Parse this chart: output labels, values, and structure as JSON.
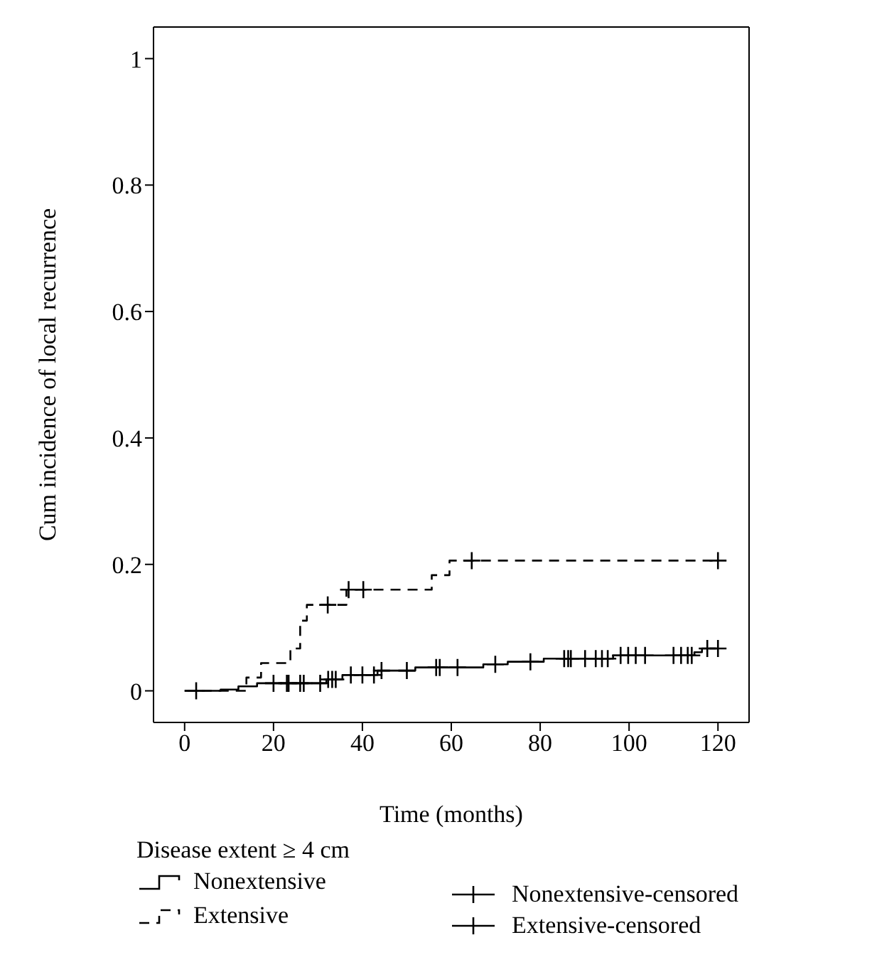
{
  "chart_data": {
    "type": "step",
    "xlabel": "Time (months)",
    "ylabel": "Cum incidence of local recurrence",
    "legend_title": "Disease extent ≥ 4 cm",
    "xlim": [
      -7,
      127
    ],
    "xticks": [
      0,
      20,
      40,
      60,
      80,
      100,
      120
    ],
    "ylim": [
      -0.05,
      1.05
    ],
    "yticks": [
      0,
      0.2,
      0.4,
      0.6,
      0.8,
      1
    ],
    "grid": false,
    "legend": "bottom",
    "series": [
      {
        "name": "Nonextensive",
        "color": "#000000",
        "line_style": "solid",
        "x": [
          0,
          8.1,
          12.1,
          16.3,
          31.9,
          35.5,
          43.4,
          51.9,
          67.2,
          72.7,
          80.8,
          96.4,
          114.7,
          116.4,
          120
        ],
        "values": [
          0,
          0.002,
          0.007,
          0.012,
          0.018,
          0.025,
          0.032,
          0.037,
          0.042,
          0.046,
          0.051,
          0.056,
          0.061,
          0.067,
          0.067
        ]
      },
      {
        "name": "Extensive",
        "color": "#000000",
        "line_style": "dashed",
        "x": [
          0,
          13.9,
          17.2,
          23.8,
          26,
          27.5,
          36.4,
          55.6,
          59.6,
          120
        ],
        "values": [
          0,
          0.021,
          0.044,
          0.067,
          0.111,
          0.136,
          0.16,
          0.183,
          0.206,
          0.206
        ]
      },
      {
        "name": "Nonextensive-censored",
        "type": "scatter",
        "color": "#000000",
        "marker": "cross",
        "x": [
          2.6,
          20,
          23,
          23.4,
          26,
          26.8,
          30.5,
          32.3,
          33.2,
          34,
          37.4,
          40,
          42.6,
          44.3,
          50,
          56.6,
          57.4,
          61.4,
          69.9,
          77.8,
          85.4,
          86.3,
          86.9,
          90.1,
          92.5,
          93.9,
          95.2,
          98.1,
          99.8,
          101.5,
          103.6,
          110,
          111.7,
          113.2,
          114.1,
          117.6,
          120
        ],
        "values": [
          0,
          0.012,
          0.012,
          0.012,
          0.012,
          0.012,
          0.012,
          0.018,
          0.018,
          0.018,
          0.025,
          0.025,
          0.025,
          0.032,
          0.032,
          0.037,
          0.037,
          0.037,
          0.042,
          0.046,
          0.051,
          0.051,
          0.051,
          0.051,
          0.051,
          0.051,
          0.051,
          0.056,
          0.056,
          0.056,
          0.056,
          0.056,
          0.056,
          0.056,
          0.056,
          0.067,
          0.067
        ]
      },
      {
        "name": "Extensive-censored",
        "type": "scatter",
        "color": "#000000",
        "marker": "cross",
        "x": [
          32.2,
          36.9,
          40.2,
          64.6,
          120
        ],
        "values": [
          0.136,
          0.16,
          0.16,
          0.206,
          0.206
        ]
      }
    ]
  }
}
